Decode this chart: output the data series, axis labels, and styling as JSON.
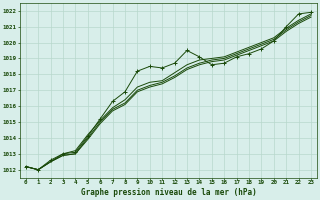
{
  "title": "Graphe pression niveau de la mer (hPa)",
  "bg_color": "#d8eeea",
  "plot_bg_color": "#d8eeea",
  "grid_color": "#b8d8cc",
  "line_color": "#1a4a0a",
  "ylim": [
    1011.5,
    1022.5
  ],
  "xlim": [
    -0.5,
    23.5
  ],
  "yticks": [
    1012,
    1013,
    1014,
    1015,
    1016,
    1017,
    1018,
    1019,
    1020,
    1021,
    1022
  ],
  "xticks": [
    0,
    1,
    2,
    3,
    4,
    5,
    6,
    7,
    8,
    9,
    10,
    11,
    12,
    13,
    14,
    15,
    16,
    17,
    18,
    19,
    20,
    21,
    22,
    23
  ],
  "series": [
    [
      1012.2,
      1012.0,
      1012.6,
      1013.0,
      1013.1,
      1014.1,
      1015.2,
      1016.3,
      1016.9,
      1018.2,
      1018.5,
      1018.4,
      1018.7,
      1019.5,
      1019.1,
      1018.6,
      1018.7,
      1019.1,
      1019.3,
      1019.6,
      1020.1,
      1021.0,
      1021.8,
      1021.9
    ],
    [
      1012.2,
      1012.0,
      1012.5,
      1013.0,
      1013.2,
      1014.2,
      1015.1,
      1015.9,
      1016.4,
      1017.2,
      1017.5,
      1017.6,
      1018.1,
      1018.6,
      1018.9,
      1019.0,
      1019.1,
      1019.4,
      1019.7,
      1020.0,
      1020.3,
      1020.9,
      1021.4,
      1021.8
    ],
    [
      1012.2,
      1012.0,
      1012.5,
      1012.9,
      1013.0,
      1014.0,
      1015.0,
      1015.8,
      1016.2,
      1017.0,
      1017.3,
      1017.5,
      1017.9,
      1018.4,
      1018.7,
      1018.9,
      1019.0,
      1019.3,
      1019.6,
      1019.9,
      1020.2,
      1020.8,
      1021.3,
      1021.7
    ],
    [
      1012.2,
      1012.0,
      1012.5,
      1012.9,
      1013.0,
      1013.9,
      1014.9,
      1015.7,
      1016.1,
      1016.9,
      1017.2,
      1017.4,
      1017.8,
      1018.3,
      1018.6,
      1018.8,
      1018.9,
      1019.2,
      1019.5,
      1019.8,
      1020.1,
      1020.7,
      1021.2,
      1021.6
    ]
  ],
  "marker_series": 0,
  "xlabel_fontsize": 5.5,
  "tick_fontsize": 4.2,
  "linewidth": 0.7
}
